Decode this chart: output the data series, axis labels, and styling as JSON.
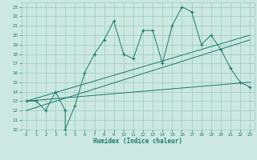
{
  "title": "",
  "xlabel": "Humidex (Indice chaleur)",
  "bg_color": "#cce8e0",
  "grid_color": "#99ccbb",
  "line_color": "#1a7a6e",
  "xlim": [
    -0.5,
    23.5
  ],
  "ylim": [
    10,
    23.5
  ],
  "yticks": [
    10,
    11,
    12,
    13,
    14,
    15,
    16,
    17,
    18,
    19,
    20,
    21,
    22,
    23
  ],
  "xticks": [
    0,
    1,
    2,
    3,
    4,
    5,
    6,
    7,
    8,
    9,
    10,
    11,
    12,
    13,
    14,
    15,
    16,
    17,
    18,
    19,
    20,
    21,
    22,
    23
  ],
  "line1_x": [
    0,
    1,
    2,
    3,
    4,
    4,
    5,
    6,
    7,
    8,
    9,
    10,
    11,
    12,
    13,
    14,
    15,
    16,
    17,
    18,
    19,
    20,
    21,
    22,
    23
  ],
  "line1_y": [
    13.0,
    13.0,
    12.0,
    14.0,
    12.0,
    10.0,
    12.5,
    16.0,
    18.0,
    19.5,
    21.5,
    18.0,
    17.5,
    20.5,
    20.5,
    17.0,
    21.0,
    23.0,
    22.5,
    19.0,
    20.0,
    18.5,
    16.5,
    15.0,
    14.5
  ],
  "line2_x": [
    0,
    23
  ],
  "line2_y": [
    13.0,
    20.0
  ],
  "line3_x": [
    0,
    23
  ],
  "line3_y": [
    13.0,
    15.0
  ],
  "line4_x": [
    0,
    23
  ],
  "line4_y": [
    12.0,
    19.5
  ]
}
